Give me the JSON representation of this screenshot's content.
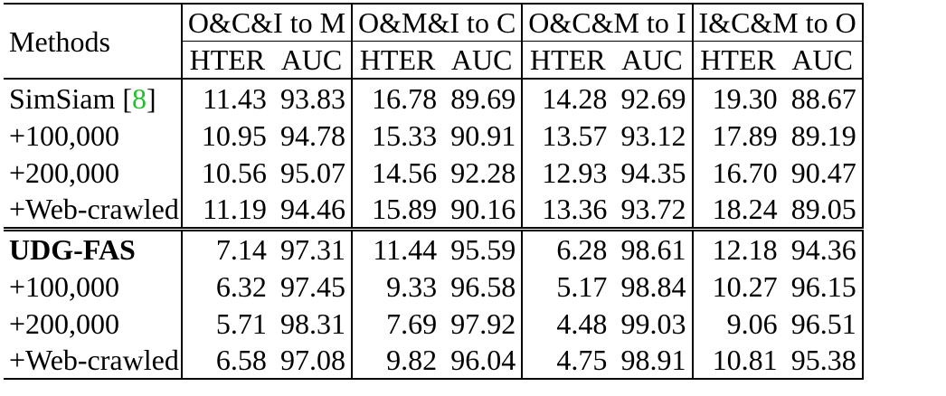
{
  "table": {
    "method_header": "Methods",
    "groups": [
      "O&C&I to M",
      "O&M&I to C",
      "O&C&M to I",
      "I&C&M to O"
    ],
    "sub_headers": [
      "HTER",
      "AUC"
    ],
    "section1": [
      {
        "method": "SimSiam [",
        "cite": "8",
        "method_suffix": "]",
        "values": [
          "11.43",
          "93.83",
          "16.78",
          "89.69",
          "14.28",
          "92.69",
          "19.30",
          "88.67"
        ]
      },
      {
        "method": "+100,000",
        "values": [
          "10.95",
          "94.78",
          "15.33",
          "90.91",
          "13.57",
          "93.12",
          "17.89",
          "89.19"
        ]
      },
      {
        "method": "+200,000",
        "values": [
          "10.56",
          "95.07",
          "14.56",
          "92.28",
          "12.93",
          "94.35",
          "16.70",
          "90.47"
        ]
      },
      {
        "method": "+Web-crawled",
        "values": [
          "11.19",
          "94.46",
          "15.89",
          "90.16",
          "13.36",
          "93.72",
          "18.24",
          "89.05"
        ]
      }
    ],
    "section2": [
      {
        "method": "UDG-FAS",
        "values": [
          "7.14",
          "97.31",
          "11.44",
          "95.59",
          "6.28",
          "98.61",
          "12.18",
          "94.36"
        ]
      },
      {
        "method": "+100,000",
        "values": [
          "6.32",
          "97.45",
          "9.33",
          "96.58",
          "5.17",
          "98.84",
          "10.27",
          "96.15"
        ]
      },
      {
        "method": "+200,000",
        "values": [
          "5.71",
          "98.31",
          "7.69",
          "97.92",
          "4.48",
          "99.03",
          "9.06",
          "96.51"
        ]
      },
      {
        "method": "+Web-crawled",
        "values": [
          "6.58",
          "97.08",
          "9.82",
          "96.04",
          "4.75",
          "98.91",
          "10.81",
          "95.38"
        ]
      }
    ]
  }
}
